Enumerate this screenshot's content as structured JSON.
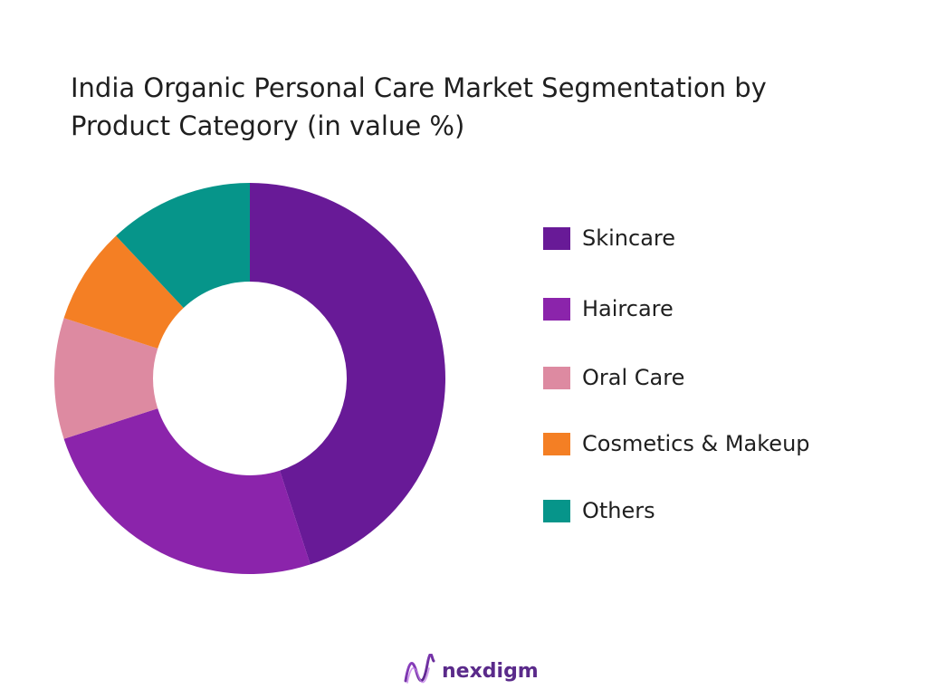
{
  "chart_data": {
    "type": "donut",
    "title_lines": [
      "India Organic Personal Care Market Segmentation by",
      "Product Category (in value %)"
    ],
    "categories": [
      "Skincare",
      "Haircare",
      "Oral Care",
      "Cosmetics & Makeup",
      "Others"
    ],
    "values": [
      45,
      25,
      10,
      8,
      12
    ],
    "colors": [
      "#681A97",
      "#8B24AB",
      "#DD8AA1",
      "#F47F24",
      "#06958A"
    ],
    "legend_position": "right",
    "grid": false
  },
  "brand": {
    "name": "nexdigm",
    "logo_icon": "nexdigm-wave-logo"
  }
}
